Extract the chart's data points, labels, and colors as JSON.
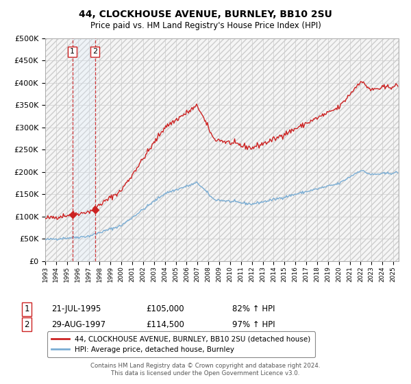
{
  "title": "44, CLOCKHOUSE AVENUE, BURNLEY, BB10 2SU",
  "subtitle": "Price paid vs. HM Land Registry's House Price Index (HPI)",
  "footer": "Contains HM Land Registry data © Crown copyright and database right 2024.\nThis data is licensed under the Open Government Licence v3.0.",
  "legend_line1": "44, CLOCKHOUSE AVENUE, BURNLEY, BB10 2SU (detached house)",
  "legend_line2": "HPI: Average price, detached house, Burnley",
  "purchase1_date": "21-JUL-1995",
  "purchase1_price": 105000,
  "purchase1_hpi": "82% ↑ HPI",
  "purchase1_label": "1",
  "purchase2_date": "29-AUG-1997",
  "purchase2_price": 114500,
  "purchase2_hpi": "97% ↑ HPI",
  "purchase2_label": "2",
  "hpi_color": "#7aadd4",
  "price_color": "#cc2222",
  "vline_color": "#cc2222",
  "shade_color": "#ddeeff",
  "ylim": [
    0,
    500000
  ],
  "yticks": [
    0,
    50000,
    100000,
    150000,
    200000,
    250000,
    300000,
    350000,
    400000,
    450000,
    500000
  ],
  "grid_color": "#cccccc",
  "xmin": 1993,
  "xmax": 2025.5
}
